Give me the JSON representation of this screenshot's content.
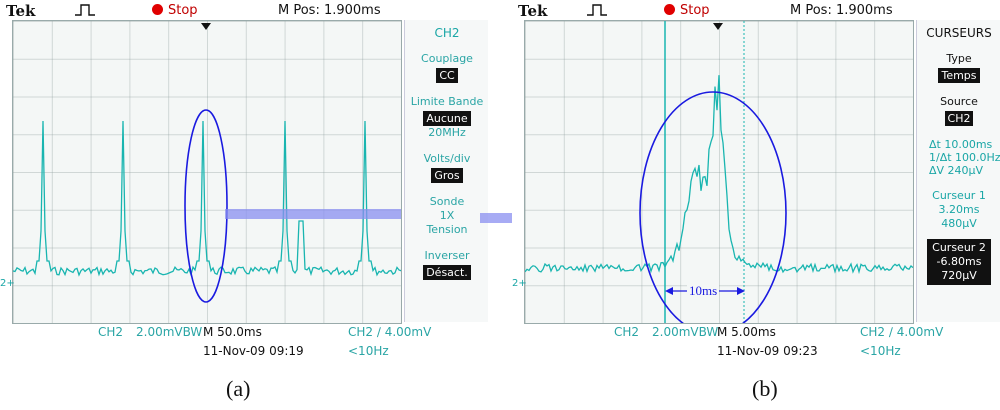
{
  "scope_a": {
    "brand": "Tek",
    "stop": "Stop",
    "mpos": "M Pos: 1.900ms",
    "channel_marker": "2+",
    "side": {
      "title": "CH2",
      "coupling_label": "Couplage",
      "coupling_value": "CC",
      "bandwidth_label": "Limite Bande",
      "bandwidth_value": "Aucune",
      "bandwidth_freq": "20MHz",
      "volts_label": "Volts/div",
      "volts_value": "Gros",
      "probe_label": "Sonde",
      "probe_factor": "1X",
      "probe_type": "Tension",
      "invert_label": "Inverser",
      "invert_value": "Désact."
    },
    "bottom": {
      "ch": "CH2",
      "scale": "2.00mVBW",
      "time": "M 50.0ms",
      "trigger": "CH2 ∕ 4.00mV",
      "date": "11-Nov-09 09:19",
      "freq": "<10Hz"
    },
    "caption": "(a)"
  },
  "scope_b": {
    "brand": "Tek",
    "stop": "Stop",
    "mpos": "M Pos: 1.900ms",
    "channel_marker": "2+",
    "annotation": "10ms",
    "side": {
      "title": "CURSEURS",
      "type_label": "Type",
      "type_value": "Temps",
      "source_label": "Source",
      "source_value": "CH2",
      "delta_t": "Δt 10.00ms",
      "inv_delta_t": "1/Δt 100.0Hz",
      "delta_v": "ΔV 240μV",
      "cursor1_label": "Curseur 1",
      "cursor1_time": "3.20ms",
      "cursor1_volt": "480μV",
      "cursor2_label": "Curseur 2",
      "cursor2_time": "-6.80ms",
      "cursor2_volt": "720μV"
    },
    "bottom": {
      "ch": "CH2",
      "scale": "2.00mVBW",
      "time": "M 5.00ms",
      "trigger": "CH2 ∕ 4.00mV",
      "date": "11-Nov-09 09:23",
      "freq": "<10Hz"
    },
    "caption": "(b)"
  },
  "colors": {
    "trace": "#19b5b0",
    "ellipse": "#1a1ae0",
    "arrow": "#8a8ff0",
    "stop": "#e00000"
  }
}
